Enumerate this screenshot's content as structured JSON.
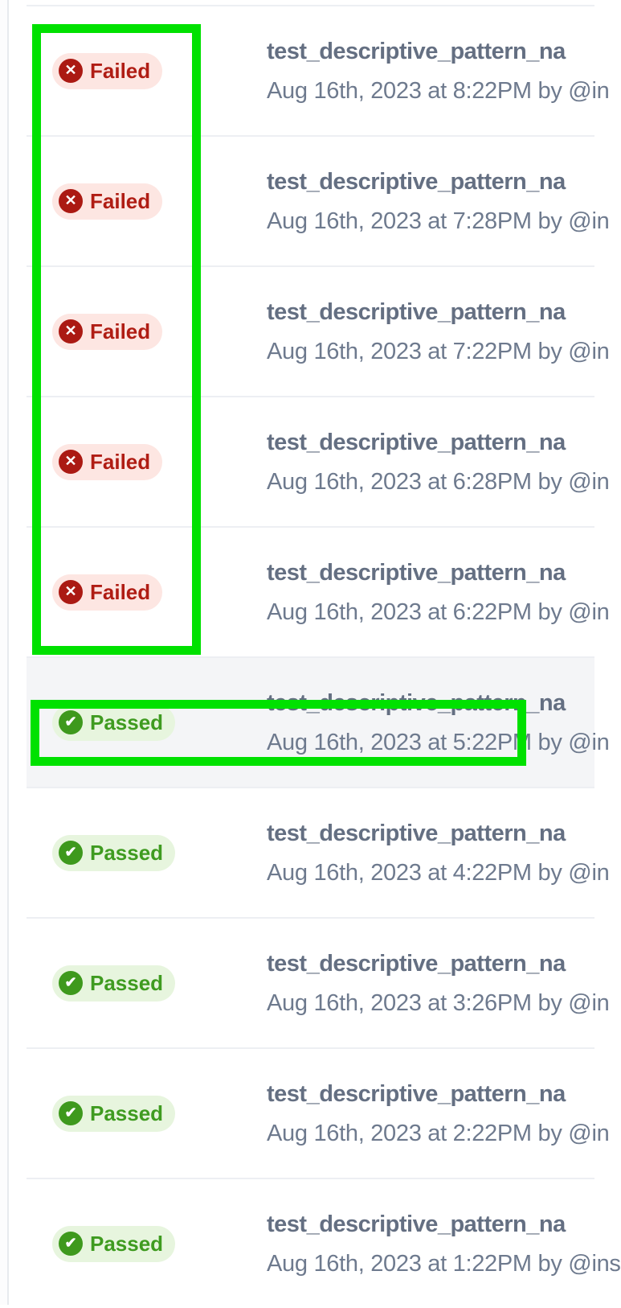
{
  "panel": {
    "separator_color": "#edeff3",
    "highlight_row_color": "#f4f5f7"
  },
  "annotations": {
    "color": "#00e100",
    "boxes": [
      {
        "name": "failed-column-box"
      },
      {
        "name": "passed-row-box"
      }
    ]
  },
  "statuses": {
    "failed": {
      "label": "Failed",
      "glyph": "✕",
      "icon_name": "x-circle-icon",
      "text_color": "#b01d14",
      "pill_bg": "#fde6e2",
      "icon_bg": "#ab1a13"
    },
    "passed": {
      "label": "Passed",
      "glyph": "✔",
      "icon_name": "check-circle-icon",
      "text_color": "#3f9b20",
      "pill_bg": "#e7f5de",
      "icon_bg": "#3e991d"
    }
  },
  "test_runs": [
    {
      "status": "failed",
      "name": "test_descriptive_pattern_na",
      "timestamp": "Aug 16th, 2023 at 8:22PM by @in",
      "highlighted": false
    },
    {
      "status": "failed",
      "name": "test_descriptive_pattern_na",
      "timestamp": "Aug 16th, 2023 at 7:28PM by @in",
      "highlighted": false
    },
    {
      "status": "failed",
      "name": "test_descriptive_pattern_na",
      "timestamp": "Aug 16th, 2023 at 7:22PM by @in",
      "highlighted": false
    },
    {
      "status": "failed",
      "name": "test_descriptive_pattern_na",
      "timestamp": "Aug 16th, 2023 at 6:28PM by @in",
      "highlighted": false
    },
    {
      "status": "failed",
      "name": "test_descriptive_pattern_na",
      "timestamp": "Aug 16th, 2023 at 6:22PM by @in",
      "highlighted": false
    },
    {
      "status": "passed",
      "name": "test_descriptive_pattern_na",
      "timestamp": "Aug 16th, 2023 at 5:22PM by @in",
      "highlighted": true
    },
    {
      "status": "passed",
      "name": "test_descriptive_pattern_na",
      "timestamp": "Aug 16th, 2023 at 4:22PM by @in",
      "highlighted": false
    },
    {
      "status": "passed",
      "name": "test_descriptive_pattern_na",
      "timestamp": "Aug 16th, 2023 at 3:26PM by @in",
      "highlighted": false
    },
    {
      "status": "passed",
      "name": "test_descriptive_pattern_na",
      "timestamp": "Aug 16th, 2023 at 2:22PM by @in",
      "highlighted": false
    },
    {
      "status": "passed",
      "name": "test_descriptive_pattern_na",
      "timestamp": "Aug 16th, 2023 at 1:22PM by @ins",
      "highlighted": false
    }
  ]
}
